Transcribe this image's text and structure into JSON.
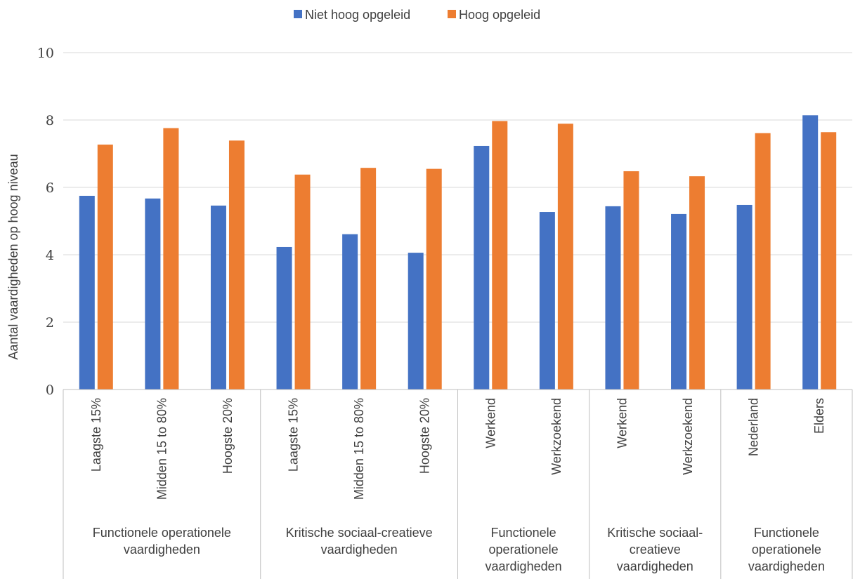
{
  "chart_data": {
    "type": "bar",
    "ylabel": "Aantal vaardigheden op hoog niveau",
    "xlabel": "",
    "ylim": [
      0,
      10
    ],
    "yticks": [
      0,
      2,
      4,
      6,
      8,
      10
    ],
    "grid": true,
    "legend_position": "top-center",
    "categories": [
      "Laagste 15%",
      "Midden 15 to 80%",
      "Hoogste 20%",
      "Laagste 15%",
      "Midden 15 to 80%",
      "Hoogste 20%",
      "Werkend",
      "Werkzoekend",
      "Werkend",
      "Werkzoekend",
      "Nederland",
      "Elders"
    ],
    "groups": [
      {
        "label": [
          "Functionele operationele",
          "vaardigheden"
        ],
        "size": 3
      },
      {
        "label": [
          "Kritische sociaal-creatieve",
          "vaardigheden"
        ],
        "size": 3
      },
      {
        "label": [
          "Functionele",
          "operationele",
          "vaardigheden"
        ],
        "size": 2
      },
      {
        "label": [
          "Kritische sociaal-",
          "creatieve",
          "vaardigheden"
        ],
        "size": 2
      },
      {
        "label": [
          "Functionele",
          "operationele",
          "vaardigheden"
        ],
        "size": 2
      }
    ],
    "series": [
      {
        "name": "Niet hoog opgeleid",
        "color": "#4472c4",
        "values": [
          5.75,
          5.67,
          5.46,
          4.23,
          4.61,
          4.06,
          7.23,
          5.27,
          5.44,
          5.21,
          5.48,
          8.14
        ]
      },
      {
        "name": "Hoog opgeleid",
        "color": "#ed7d31",
        "values": [
          7.27,
          7.76,
          7.39,
          6.38,
          6.58,
          6.55,
          7.97,
          7.89,
          6.48,
          6.33,
          7.61,
          7.64
        ]
      }
    ]
  }
}
